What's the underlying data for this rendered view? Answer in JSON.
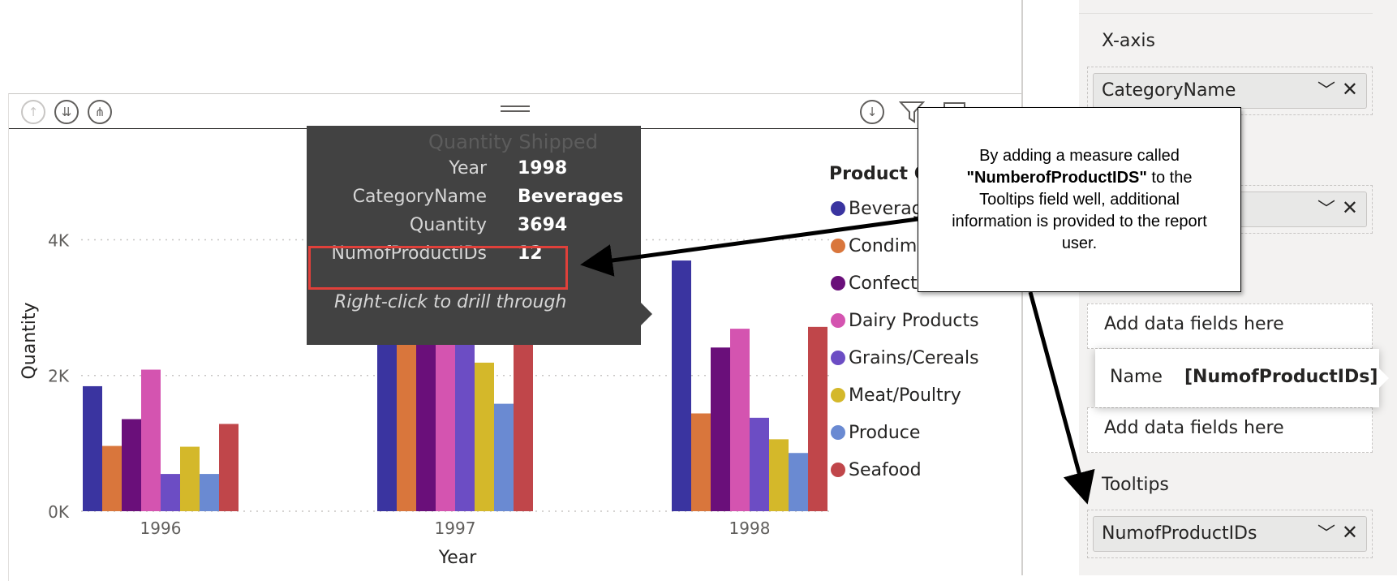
{
  "chart_data": {
    "type": "bar",
    "title": "Quantity Shipped",
    "xlabel": "Year",
    "ylabel": "Quantity",
    "categories": [
      "1996",
      "1997",
      "1998"
    ],
    "ylim": [
      0,
      5500
    ],
    "yticks": [
      {
        "value": 0,
        "label": "0K"
      },
      {
        "value": 2000,
        "label": "2K"
      },
      {
        "value": 4000,
        "label": "4K"
      }
    ],
    "grid": true,
    "legend_position": "right",
    "legend_title": "Product Category",
    "series": [
      {
        "name": "Beverages",
        "color": "#3a34a0",
        "values": [
          1842,
          3996,
          3694
        ]
      },
      {
        "name": "Condiments",
        "color": "#d9763c",
        "values": [
          962,
          2895,
          1441
        ]
      },
      {
        "name": "Confections",
        "color": "#6a0f7a",
        "values": [
          1357,
          3700,
          2412
        ]
      },
      {
        "name": "Dairy Products",
        "color": "#d454b0",
        "values": [
          2086,
          4374,
          2689
        ]
      },
      {
        "name": "Grains/Cereals",
        "color": "#6c4dc4",
        "values": [
          549,
          2636,
          1377
        ]
      },
      {
        "name": "Meat/Poultry",
        "color": "#d4b82a",
        "values": [
          950,
          2189,
          1060
        ]
      },
      {
        "name": "Produce",
        "color": "#6a8ad2",
        "values": [
          549,
          1583,
          858
        ]
      },
      {
        "name": "Seafood",
        "color": "#c0464a",
        "values": [
          1286,
          3500,
          2716
        ]
      }
    ]
  },
  "tooltip": {
    "rows": [
      {
        "label": "Year",
        "value": "1998"
      },
      {
        "label": "CategoryName",
        "value": "Beverages"
      },
      {
        "label": "Quantity",
        "value": "3694"
      },
      {
        "label": "NumofProductIDs",
        "value": "12"
      }
    ],
    "drill_text": "Right-click to drill through"
  },
  "legend": {
    "title_visible": "Product C",
    "items": [
      {
        "label": "Beverag",
        "color": "#3a34a0"
      },
      {
        "label": "Condim",
        "color": "#d9763c"
      },
      {
        "label": "Confecti",
        "color": "#6a0f7a"
      },
      {
        "label": "Dairy Products",
        "color": "#d454b0"
      },
      {
        "label": "Grains/Cereals",
        "color": "#6c4dc4"
      },
      {
        "label": "Meat/Poultry",
        "color": "#d4b82a"
      },
      {
        "label": "Produce",
        "color": "#6a8ad2"
      },
      {
        "label": "Seafood",
        "color": "#c0464a"
      }
    ]
  },
  "callout": {
    "line1": "By adding a measure called",
    "line2_bold": "\"NumberofProductIDS\"",
    "line2_rest": " to the",
    "line3": "Tooltips field well, additional",
    "line4": "information is provided to the report",
    "line5": "user."
  },
  "pane": {
    "xaxis_title": "X-axis",
    "xaxis_field": "CategoryName",
    "add_fields_1": "Add data fields here",
    "add_fields_2": "Add data fields here",
    "tooltips_title": "Tooltips",
    "tooltips_field": "NumofProductIDs",
    "name_label": "Name",
    "name_value": "[NumofProductIDs]"
  },
  "icons": {
    "drill_up": "arrow-up-icon",
    "drill_down_all": "double-arrow-down-icon",
    "expand_hierarchy": "expand-hierarchy-icon",
    "drill_mode": "arrow-down-circle-icon",
    "filter": "filter-icon",
    "focus_mode": "focus-mode-icon",
    "chevron": "chevron-down-icon",
    "remove": "close-icon"
  }
}
